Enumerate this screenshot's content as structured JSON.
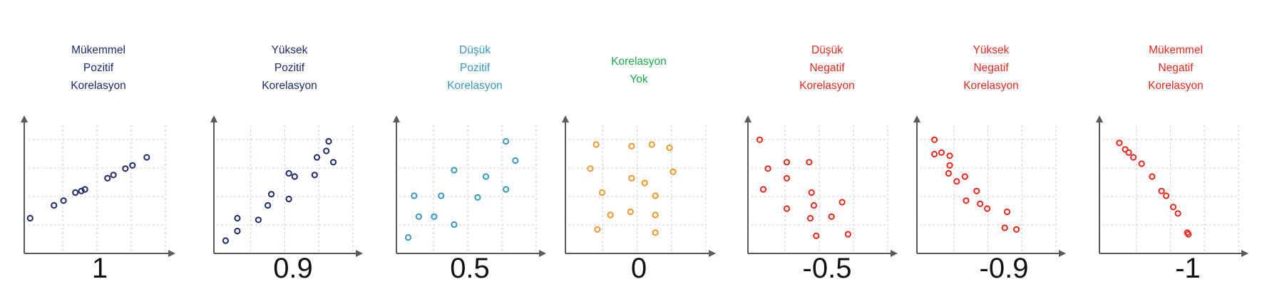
{
  "panels": [
    {
      "title_lines": [
        "Mükemmel",
        "Pozitif",
        "Korelasyon"
      ],
      "value_label": "1",
      "color": "#1f2a6b",
      "chart_data": {
        "type": "scatter",
        "xlim": [
          0,
          10
        ],
        "ylim": [
          0,
          8
        ],
        "grid": true,
        "points": [
          [
            0.5,
            2.2
          ],
          [
            2.5,
            3.0
          ],
          [
            3.3,
            3.3
          ],
          [
            4.3,
            3.8
          ],
          [
            4.8,
            3.9
          ],
          [
            5.1,
            4.0
          ],
          [
            7.0,
            4.7
          ],
          [
            7.5,
            4.9
          ],
          [
            8.5,
            5.3
          ],
          [
            9.1,
            5.5
          ],
          [
            10.3,
            6.0
          ]
        ]
      }
    },
    {
      "title_lines": [
        "Yüksek",
        "Pozitif",
        "Korelasyon"
      ],
      "value_label": "0.9",
      "color": "#1f2a6b",
      "chart_data": {
        "type": "scatter",
        "xlim": [
          0,
          10
        ],
        "ylim": [
          0,
          8
        ],
        "grid": true,
        "points": [
          [
            1.0,
            0.8
          ],
          [
            2.0,
            1.4
          ],
          [
            2.0,
            2.2
          ],
          [
            3.8,
            2.1
          ],
          [
            4.6,
            3.0
          ],
          [
            4.9,
            3.7
          ],
          [
            6.4,
            3.4
          ],
          [
            6.4,
            5.0
          ],
          [
            6.9,
            4.8
          ],
          [
            8.6,
            4.9
          ],
          [
            8.8,
            6.0
          ],
          [
            9.6,
            6.4
          ],
          [
            9.8,
            7.0
          ],
          [
            10.2,
            5.7
          ]
        ]
      }
    },
    {
      "title_lines": [
        "Düşük",
        "Pozitif",
        "Korelasyon"
      ],
      "value_label": "0.5",
      "color": "#3a98bf",
      "chart_data": {
        "type": "scatter",
        "xlim": [
          0,
          10
        ],
        "ylim": [
          0,
          8
        ],
        "grid": true,
        "points": [
          [
            1.0,
            1.0
          ],
          [
            1.5,
            3.6
          ],
          [
            1.9,
            2.3
          ],
          [
            3.2,
            2.3
          ],
          [
            3.8,
            3.6
          ],
          [
            4.9,
            5.2
          ],
          [
            4.9,
            1.8
          ],
          [
            6.9,
            3.5
          ],
          [
            7.6,
            4.8
          ],
          [
            9.3,
            7.0
          ],
          [
            9.3,
            4.0
          ],
          [
            10.1,
            5.8
          ]
        ]
      }
    },
    {
      "title_lines": [
        "Korelasyon",
        "Yok"
      ],
      "value_label": "0",
      "color": "#1ea84a",
      "chart_data": {
        "type": "scatter",
        "marker_color": "#f0962b",
        "xlim": [
          0,
          10
        ],
        "ylim": [
          0,
          8
        ],
        "grid": true,
        "points": [
          [
            2.1,
            5.3
          ],
          [
            2.6,
            6.8
          ],
          [
            2.7,
            1.5
          ],
          [
            3.1,
            3.8
          ],
          [
            3.8,
            2.4
          ],
          [
            5.6,
            6.7
          ],
          [
            5.6,
            4.7
          ],
          [
            5.5,
            2.6
          ],
          [
            6.7,
            4.4
          ],
          [
            7.3,
            6.8
          ],
          [
            7.6,
            3.6
          ],
          [
            7.6,
            2.4
          ],
          [
            7.6,
            1.3
          ],
          [
            8.8,
            6.6
          ],
          [
            9.1,
            5.1
          ]
        ]
      }
    },
    {
      "title_lines": [
        "Düşük",
        "Negatif",
        "Korelasyon"
      ],
      "value_label": "-0.5",
      "color": "#e8281f",
      "chart_data": {
        "type": "scatter",
        "xlim": [
          0,
          10
        ],
        "ylim": [
          0,
          8
        ],
        "grid": true,
        "points": [
          [
            1.0,
            7.1
          ],
          [
            1.3,
            4.0
          ],
          [
            1.7,
            5.3
          ],
          [
            3.3,
            5.7
          ],
          [
            3.3,
            4.7
          ],
          [
            3.3,
            2.8
          ],
          [
            5.2,
            5.7
          ],
          [
            5.4,
            3.8
          ],
          [
            5.6,
            3.0
          ],
          [
            5.3,
            2.2
          ],
          [
            5.8,
            1.1
          ],
          [
            7.1,
            2.3
          ],
          [
            8.0,
            3.2
          ],
          [
            8.5,
            1.2
          ]
        ]
      }
    },
    {
      "title_lines": [
        "Yüksek",
        "Negatif",
        "Korelasyon"
      ],
      "value_label": "-0.9",
      "color": "#e8281f",
      "chart_data": {
        "type": "scatter",
        "xlim": [
          0,
          10
        ],
        "ylim": [
          0,
          8
        ],
        "grid": true,
        "points": [
          [
            1.5,
            7.1
          ],
          [
            1.5,
            6.2
          ],
          [
            2.1,
            6.3
          ],
          [
            2.8,
            6.1
          ],
          [
            2.8,
            5.5
          ],
          [
            2.7,
            5.0
          ],
          [
            3.4,
            4.5
          ],
          [
            4.1,
            4.8
          ],
          [
            4.2,
            3.3
          ],
          [
            5.1,
            3.9
          ],
          [
            5.4,
            3.1
          ],
          [
            6.0,
            2.8
          ],
          [
            7.5,
            1.6
          ],
          [
            7.7,
            2.6
          ],
          [
            8.5,
            1.5
          ]
        ]
      }
    },
    {
      "title_lines": [
        "Mükemmel",
        "Negatif",
        "Korelasyon"
      ],
      "value_label": "-1",
      "color": "#e8281f",
      "chart_data": {
        "type": "scatter",
        "xlim": [
          0,
          10
        ],
        "ylim": [
          0,
          8
        ],
        "grid": true,
        "points": [
          [
            1.7,
            6.9
          ],
          [
            2.2,
            6.5
          ],
          [
            2.5,
            6.3
          ],
          [
            2.9,
            6.0
          ],
          [
            3.6,
            5.6
          ],
          [
            4.5,
            4.8
          ],
          [
            5.3,
            3.9
          ],
          [
            5.7,
            3.6
          ],
          [
            6.3,
            2.9
          ],
          [
            6.7,
            2.5
          ],
          [
            7.5,
            1.3
          ],
          [
            7.6,
            1.2
          ]
        ]
      }
    }
  ]
}
